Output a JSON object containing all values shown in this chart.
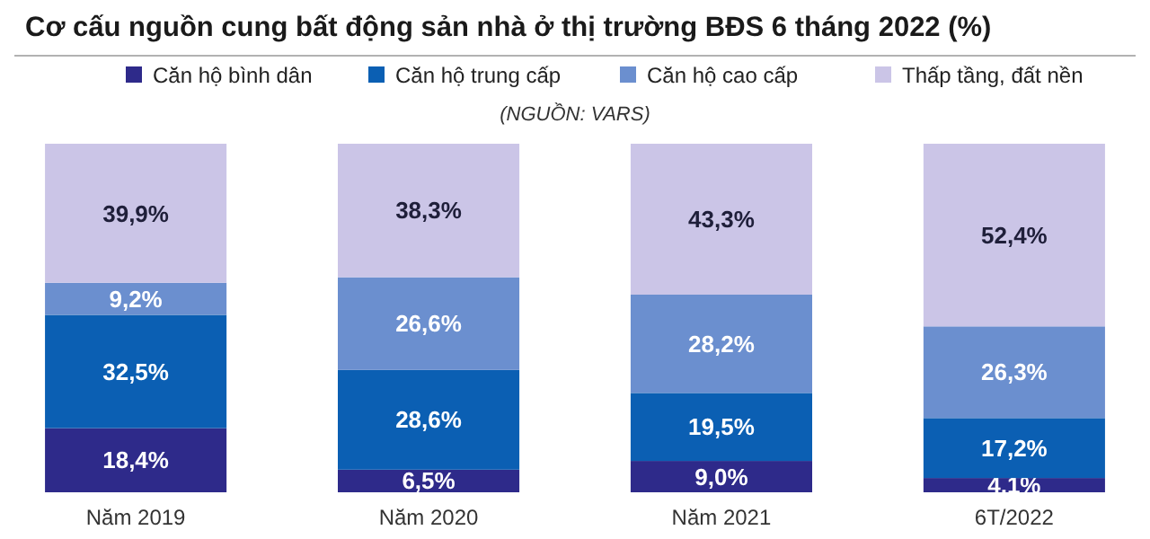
{
  "chart_data": {
    "type": "bar",
    "stacked": true,
    "title": "Cơ cấu nguồn cung bất động sản nhà ở thị trường BĐS 6 tháng 2022 (%)",
    "annotations": [
      "(NGUỒN: VARS)"
    ],
    "categories": [
      "Năm 2019",
      "Năm 2020",
      "Năm 2021",
      "6T/2022"
    ],
    "legend": "top",
    "series": [
      {
        "name": "Căn hộ bình dân",
        "color": "#2e2a8a",
        "values": [
          18.4,
          6.5,
          9.0,
          4.1
        ],
        "value_labels": [
          "18,4%",
          "6,5%",
          "9,0%",
          "4,1%"
        ]
      },
      {
        "name": "Căn hộ trung cấp",
        "color": "#0b5fb3",
        "values": [
          32.5,
          28.6,
          19.5,
          17.2
        ],
        "value_labels": [
          "32,5%",
          "28,6%",
          "19,5%",
          "17,2%"
        ]
      },
      {
        "name": "Căn hộ cao cấp",
        "color": "#6b8fcf",
        "values": [
          9.2,
          26.6,
          28.2,
          26.3
        ],
        "value_labels": [
          "9,2%",
          "26,6%",
          "28,2%",
          "26,3%"
        ]
      },
      {
        "name": "Thấp tầng, đất nền",
        "color": "#cbc5e7",
        "values": [
          39.9,
          38.3,
          43.3,
          52.4
        ],
        "value_labels": [
          "39,9%",
          "38,3%",
          "43,3%",
          "52,4%"
        ]
      }
    ]
  }
}
